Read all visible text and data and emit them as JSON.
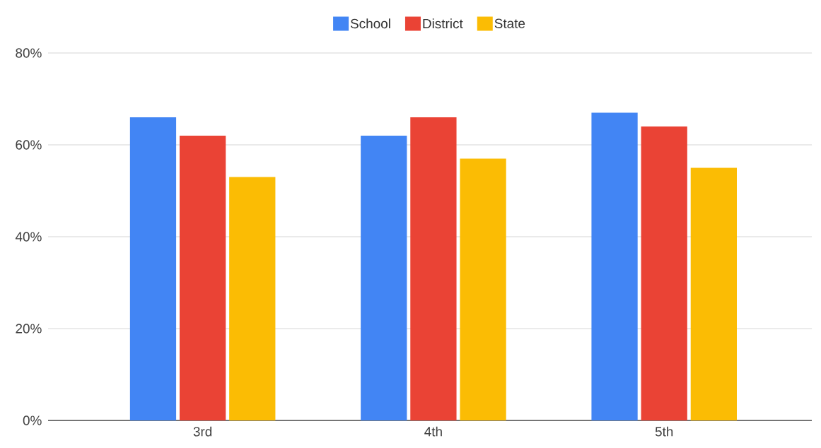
{
  "chart_data": {
    "type": "bar",
    "categories": [
      "3rd",
      "4th",
      "5th"
    ],
    "series": [
      {
        "name": "School",
        "color": "#4285f4",
        "values": [
          66,
          62,
          67
        ]
      },
      {
        "name": "District",
        "color": "#ea4335",
        "values": [
          62,
          66,
          64
        ]
      },
      {
        "name": "State",
        "color": "#fbbc04",
        "values": [
          53,
          57,
          55
        ]
      }
    ],
    "ylim": [
      0,
      80
    ],
    "yticks": [
      {
        "value": 0,
        "label": "0%"
      },
      {
        "value": 20,
        "label": "20%"
      },
      {
        "value": 40,
        "label": "40%"
      },
      {
        "value": 60,
        "label": "60%"
      },
      {
        "value": 80,
        "label": "80%"
      }
    ],
    "grid": "y",
    "legend": "top"
  }
}
